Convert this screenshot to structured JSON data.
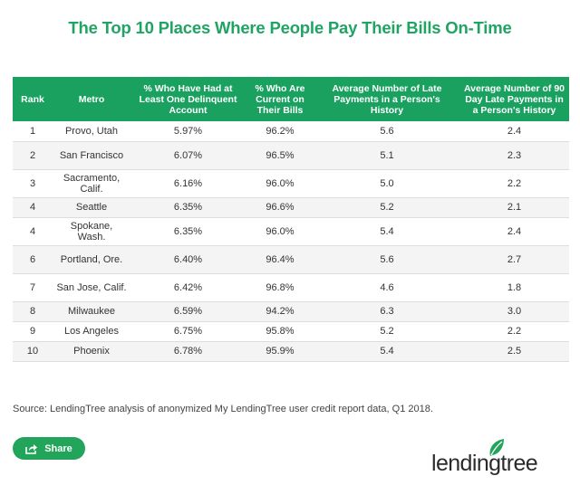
{
  "title": "The Top 10 Places Where People Pay Their Bills On-Time",
  "table": {
    "headers": {
      "rank": "Rank",
      "metro": "Metro",
      "delinquent": "% Who Have Had at Least One Delinquent Account",
      "current": "% Who Are Current on Their Bills",
      "late": "Average Number of Late Payments in a Person's History",
      "late90": "Average Number of 90 Day Late Payments in a Person's History"
    },
    "rows": [
      {
        "rank": "1",
        "metro": "Provo, Utah",
        "delinquent": "5.97%",
        "current": "96.2%",
        "late": "5.6",
        "late90": "2.4"
      },
      {
        "rank": "2",
        "metro": "San Francisco",
        "delinquent": "6.07%",
        "current": "96.5%",
        "late": "5.1",
        "late90": "2.3"
      },
      {
        "rank": "3",
        "metro": "Sacramento, Calif.",
        "delinquent": "6.16%",
        "current": "96.0%",
        "late": "5.0",
        "late90": "2.2"
      },
      {
        "rank": "4",
        "metro": "Seattle",
        "delinquent": "6.35%",
        "current": "96.6%",
        "late": "5.2",
        "late90": "2.1"
      },
      {
        "rank": "4",
        "metro": "Spokane, Wash.",
        "delinquent": "6.35%",
        "current": "96.0%",
        "late": "5.4",
        "late90": "2.4"
      },
      {
        "rank": "6",
        "metro": "Portland, Ore.",
        "delinquent": "6.40%",
        "current": "96.4%",
        "late": "5.6",
        "late90": "2.7"
      },
      {
        "rank": "7",
        "metro": "San Jose, Calif.",
        "delinquent": "6.42%",
        "current": "96.8%",
        "late": "4.6",
        "late90": "1.8"
      },
      {
        "rank": "8",
        "metro": "Milwaukee",
        "delinquent": "6.59%",
        "current": "94.2%",
        "late": "6.3",
        "late90": "3.0"
      },
      {
        "rank": "9",
        "metro": "Los Angeles",
        "delinquent": "6.75%",
        "current": "95.8%",
        "late": "5.2",
        "late90": "2.2"
      },
      {
        "rank": "10",
        "metro": "Phoenix",
        "delinquent": "6.78%",
        "current": "95.9%",
        "late": "5.4",
        "late90": "2.5"
      }
    ]
  },
  "source": "Source: LendingTree analysis of anonymized My LendingTree user credit report data, Q1 2018.",
  "share": {
    "label": "Share",
    "icon": "share-icon"
  },
  "logo": {
    "text": "lendingtree",
    "icon": "leaf-icon"
  },
  "colors": {
    "brand_green": "#1fa463",
    "header_green": "#1aa160",
    "button_green": "#22a55a"
  }
}
